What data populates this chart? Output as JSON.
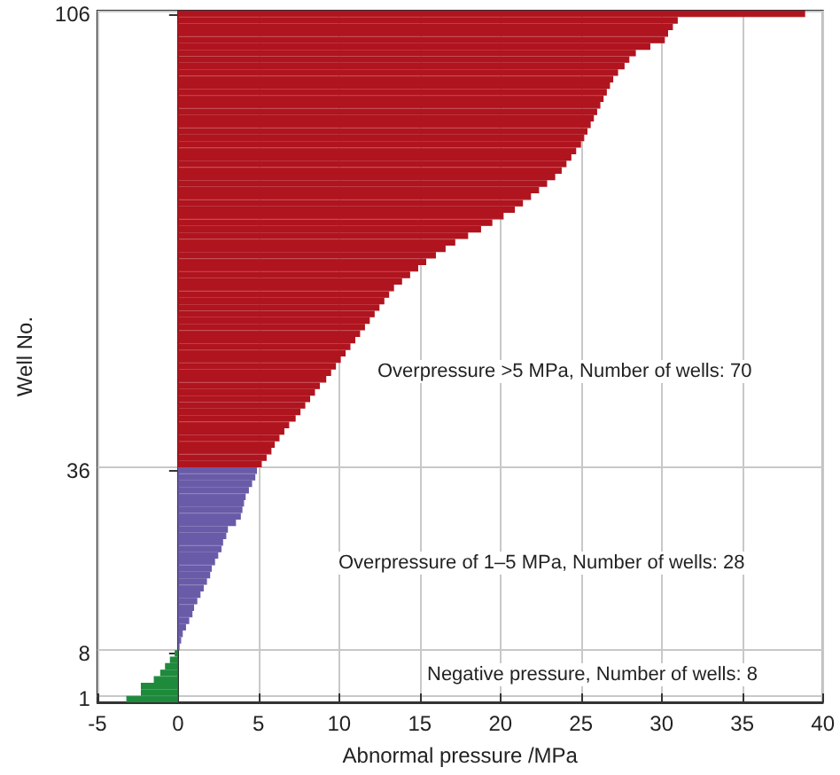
{
  "chart_data": {
    "type": "bar",
    "orientation": "horizontal",
    "xlabel": "Abnormal pressure /MPa",
    "ylabel": "Well No.",
    "categories": [
      "106",
      null,
      null,
      null,
      null,
      null,
      null,
      null,
      null,
      null,
      null,
      null,
      null,
      null,
      null,
      null,
      null,
      null,
      null,
      null,
      null,
      null,
      null,
      null,
      null,
      null,
      null,
      null,
      null,
      null,
      null,
      null,
      null,
      null,
      null,
      null,
      null,
      null,
      null,
      null,
      null,
      null,
      null,
      null,
      null,
      null,
      null,
      null,
      null,
      null,
      null,
      null,
      null,
      null,
      null,
      null,
      null,
      null,
      null,
      null,
      null,
      null,
      null,
      null,
      null,
      null,
      null,
      null,
      null,
      null,
      "36",
      null,
      null,
      null,
      null,
      null,
      null,
      null,
      null,
      null,
      null,
      null,
      null,
      null,
      null,
      null,
      null,
      null,
      null,
      null,
      null,
      null,
      null,
      null,
      null,
      null,
      null,
      null,
      "8",
      null,
      null,
      null,
      null,
      null,
      null,
      "1"
    ],
    "values": [
      38.9,
      31.0,
      30.7,
      30.4,
      30.2,
      29.3,
      28.4,
      28.0,
      27.7,
      27.3,
      27.0,
      26.8,
      26.6,
      26.4,
      26.2,
      26.0,
      25.8,
      25.6,
      25.4,
      25.2,
      25.0,
      24.7,
      24.4,
      24.1,
      23.8,
      23.4,
      22.9,
      22.4,
      21.9,
      21.4,
      20.9,
      20.2,
      19.5,
      18.8,
      18.0,
      17.2,
      16.6,
      16.0,
      15.4,
      14.9,
      14.4,
      13.9,
      13.4,
      13.1,
      12.8,
      12.5,
      12.2,
      11.9,
      11.6,
      11.3,
      11.0,
      10.7,
      10.4,
      10.1,
      9.8,
      9.5,
      9.2,
      8.8,
      8.5,
      8.2,
      7.9,
      7.6,
      7.3,
      6.9,
      6.6,
      6.3,
      6.0,
      5.8,
      5.5,
      5.2,
      4.9,
      4.8,
      4.6,
      4.4,
      4.2,
      4.1,
      4.0,
      3.9,
      3.6,
      3.1,
      3.0,
      2.8,
      2.7,
      2.5,
      2.3,
      2.1,
      2.0,
      1.8,
      1.6,
      1.4,
      1.2,
      1.0,
      0.9,
      0.7,
      0.5,
      0.3,
      0.2,
      0.1,
      -0.2,
      -0.5,
      -0.8,
      -1.1,
      -1.5,
      -2.3,
      -2.3,
      -3.2
    ],
    "colors": [
      "#b0141e",
      "#b0141e",
      "#b0141e",
      "#b0141e",
      "#b0141e",
      "#b0141e",
      "#b0141e",
      "#b0141e",
      "#b0141e",
      "#b0141e",
      "#b0141e",
      "#b0141e",
      "#b0141e",
      "#b0141e",
      "#b0141e",
      "#b0141e",
      "#b0141e",
      "#b0141e",
      "#b0141e",
      "#b0141e",
      "#b0141e",
      "#b0141e",
      "#b0141e",
      "#b0141e",
      "#b0141e",
      "#b0141e",
      "#b0141e",
      "#b0141e",
      "#b0141e",
      "#b0141e",
      "#b0141e",
      "#b0141e",
      "#b0141e",
      "#b0141e",
      "#b0141e",
      "#b0141e",
      "#b0141e",
      "#b0141e",
      "#b0141e",
      "#b0141e",
      "#b0141e",
      "#b0141e",
      "#b0141e",
      "#b0141e",
      "#b0141e",
      "#b0141e",
      "#b0141e",
      "#b0141e",
      "#b0141e",
      "#b0141e",
      "#b0141e",
      "#b0141e",
      "#b0141e",
      "#b0141e",
      "#b0141e",
      "#b0141e",
      "#b0141e",
      "#b0141e",
      "#b0141e",
      "#b0141e",
      "#b0141e",
      "#b0141e",
      "#b0141e",
      "#b0141e",
      "#b0141e",
      "#b0141e",
      "#b0141e",
      "#b0141e",
      "#b0141e",
      "#b0141e",
      "#6a5ba8",
      "#6a5ba8",
      "#6a5ba8",
      "#6a5ba8",
      "#6a5ba8",
      "#6a5ba8",
      "#6a5ba8",
      "#6a5ba8",
      "#6a5ba8",
      "#6a5ba8",
      "#6a5ba8",
      "#6a5ba8",
      "#6a5ba8",
      "#6a5ba8",
      "#6a5ba8",
      "#6a5ba8",
      "#6a5ba8",
      "#6a5ba8",
      "#6a5ba8",
      "#6a5ba8",
      "#6a5ba8",
      "#6a5ba8",
      "#6a5ba8",
      "#6a5ba8",
      "#6a5ba8",
      "#6a5ba8",
      "#6a5ba8",
      "#6a5ba8",
      "#1e8a3c",
      "#1e8a3c",
      "#1e8a3c",
      "#1e8a3c",
      "#1e8a3c",
      "#1e8a3c",
      "#1e8a3c",
      "#1e8a3c"
    ],
    "xlim": [
      -5,
      40
    ],
    "xticks": [
      -5,
      0,
      5,
      10,
      15,
      20,
      25,
      30,
      35,
      40
    ],
    "grid": true,
    "annotations": [
      "Overpressure >5 MPa, Number of wells: 70",
      "Overpressure of 1–5 MPa, Number of wells: 28",
      "Negative pressure, Number of wells: 8"
    ]
  }
}
